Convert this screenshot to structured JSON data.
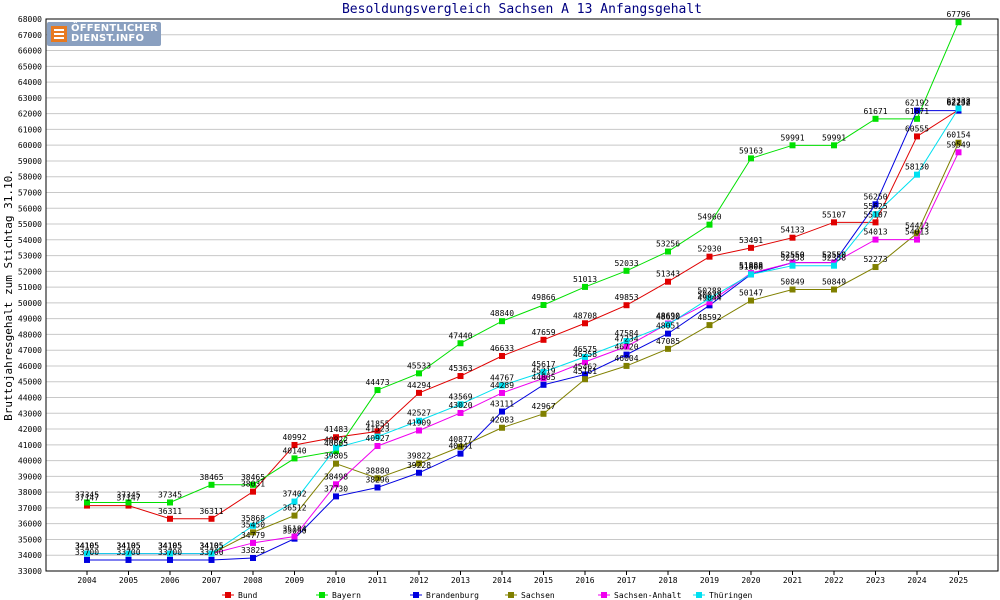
{
  "logo": {
    "line1": "ÖFFENTLICHER",
    "line2": "DIENST.INFO"
  },
  "colors": {
    "background": "#ffffff",
    "title": "#000080",
    "axis": "#000000",
    "grid": "#c8c8c8"
  },
  "chart_data": {
    "type": "line",
    "title": "Besoldungsvergleich Sachsen A 13 Anfangsgehalt",
    "xlabel": "",
    "ylabel": "Bruttojahresgehalt zum Stichtag 31.10.",
    "ylim": [
      33000,
      68000
    ],
    "y_step": 1000,
    "grid": true,
    "legend_position": "bottom",
    "x": [
      "2004",
      "2005",
      "2006",
      "2007",
      "2008",
      "2009",
      "2010",
      "2011",
      "2012",
      "2013",
      "2014",
      "2015",
      "2016",
      "2017",
      "2018",
      "2019",
      "2020",
      "2021",
      "2022",
      "2023",
      "2024",
      "2025"
    ],
    "series": [
      {
        "name": "Bund",
        "color": "#e00000",
        "values": [
          37147,
          37147,
          36311,
          36311,
          38031,
          40992,
          41483,
          41855,
          44294,
          45363,
          46633,
          47659,
          48708,
          49853,
          51343,
          52930,
          53491,
          54133,
          55107,
          55107,
          60555,
          62238
        ]
      },
      {
        "name": "Bayern",
        "color": "#00e000",
        "values": [
          37345,
          37345,
          37345,
          38465,
          38465,
          40140,
          40605,
          44473,
          45533,
          47440,
          48840,
          49866,
          51013,
          52033,
          53256,
          54960,
          59163,
          59991,
          59991,
          61671,
          61671,
          67796
        ]
      },
      {
        "name": "Brandenburg",
        "color": "#0000e0",
        "values": [
          33700,
          33700,
          33700,
          33700,
          33825,
          35050,
          37730,
          38296,
          39228,
          40441,
          43111,
          44805,
          45462,
          46720,
          48051,
          49844,
          51808,
          52550,
          52550,
          56250,
          62192,
          62192
        ]
      },
      {
        "name": "Sachsen",
        "color": "#808000",
        "values": [
          34105,
          34105,
          34105,
          34105,
          35450,
          36512,
          39805,
          38880,
          39822,
          40877,
          42083,
          42967,
          45161,
          46004,
          47085,
          48592,
          50147,
          50849,
          50849,
          52273,
          54413,
          60154
        ]
      },
      {
        "name": "Sachsen-Anhalt",
        "color": "#f000f0",
        "values": [
          34105,
          34105,
          34105,
          34105,
          34779,
          35184,
          38498,
          40927,
          41909,
          43020,
          44289,
          45219,
          46258,
          47234,
          48690,
          50038,
          51888,
          52550,
          52550,
          54013,
          54013,
          59549
        ]
      },
      {
        "name": "Thüringen",
        "color": "#00e0f0",
        "values": [
          34105,
          34105,
          34105,
          34105,
          35868,
          37402,
          40822,
          41523,
          42527,
          43569,
          44767,
          45617,
          46575,
          47584,
          48630,
          50288,
          51808,
          52358,
          52358,
          55625,
          58130,
          62332
        ]
      }
    ]
  }
}
